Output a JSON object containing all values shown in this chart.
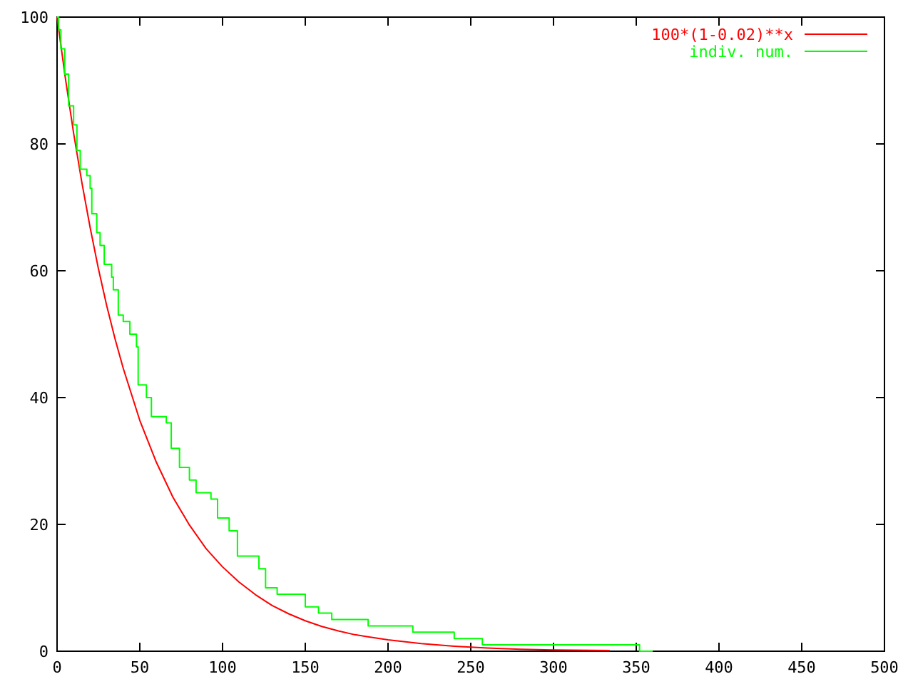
{
  "chart_data": {
    "type": "line",
    "xlim": [
      0,
      500
    ],
    "ylim": [
      0,
      100
    ],
    "xticks": [
      0,
      50,
      100,
      150,
      200,
      250,
      300,
      350,
      400,
      450,
      500
    ],
    "yticks": [
      0,
      20,
      40,
      60,
      80,
      100
    ],
    "grid": false,
    "legend": "top right",
    "marker": "none",
    "series": [
      {
        "name": "100*(1-0.02)**x",
        "color": "#ff0000",
        "x": [
          0,
          5,
          10,
          15,
          20,
          25,
          30,
          35,
          40,
          50,
          60,
          70,
          80,
          90,
          100,
          110,
          120,
          130,
          140,
          150,
          160,
          170,
          180,
          190,
          200,
          220,
          240,
          260,
          280,
          300,
          334
        ],
        "values": [
          100,
          90.4,
          81.7,
          73.9,
          66.8,
          60.3,
          54.5,
          49.3,
          44.6,
          36.4,
          29.8,
          24.3,
          19.9,
          16.2,
          13.3,
          10.9,
          8.9,
          7.2,
          5.9,
          4.8,
          3.9,
          3.2,
          2.6,
          2.2,
          1.8,
          1.2,
          0.8,
          0.5,
          0.3,
          0.2,
          0.1
        ]
      },
      {
        "name": "indiv. num.",
        "type": "step",
        "color": "#00ff00",
        "x": [
          0,
          1,
          2.3,
          4.6,
          7,
          10,
          12,
          14,
          18,
          20,
          21,
          24,
          26,
          28.5,
          33,
          34,
          37,
          40,
          44,
          48,
          49,
          54,
          57,
          66,
          69,
          74,
          80,
          84,
          93,
          97,
          104,
          109,
          122,
          126,
          133,
          150,
          158,
          166,
          188,
          215,
          240,
          257,
          352,
          360
        ],
        "values": [
          100,
          98,
          95,
          91,
          86,
          83,
          79,
          76,
          75,
          73,
          69,
          66,
          64,
          61,
          59,
          57,
          53,
          52,
          50,
          48,
          42,
          40,
          37,
          36,
          32,
          29,
          27,
          25,
          24,
          21,
          19,
          15,
          13,
          10,
          9,
          7,
          6,
          5,
          4,
          3,
          2,
          1,
          0,
          0
        ]
      }
    ]
  }
}
